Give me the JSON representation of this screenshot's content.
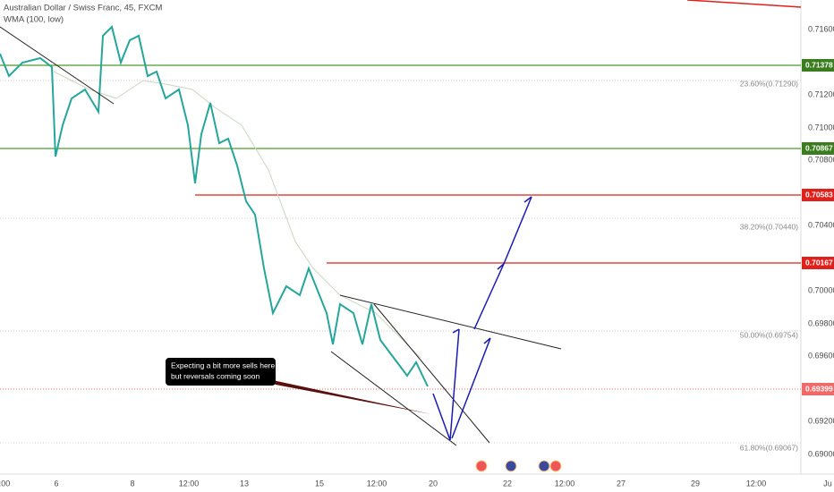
{
  "header": {
    "title": "Australian Dollar / Swiss Franc, 45, FXCM",
    "indicator": "WMA (100, low)"
  },
  "price_axis": {
    "ticks": [
      "0.71600",
      "0.71200",
      "0.71000",
      "0.70800",
      "0.70400",
      "0.70000",
      "0.69800",
      "0.69600",
      "0.69200",
      "0.69000"
    ]
  },
  "levels": [
    {
      "label": "0.71378",
      "color": "#3a7d1e"
    },
    {
      "label": "0.70867",
      "color": "#3a7d1e"
    },
    {
      "label": "0.70583",
      "color": "#e0201b"
    },
    {
      "label": "0.70167",
      "color": "#e0201b"
    },
    {
      "label": "0.69399",
      "color": "#f06a6a"
    }
  ],
  "fib_labels": [
    "23.60%(0.71290)",
    "38.20%(0.70440)",
    "50.00%(0.69754)",
    "61.80%(0.69067)"
  ],
  "annotation": {
    "lines": [
      "Expecting a bit more sells here",
      "but  reversals coming soon"
    ]
  },
  "time_axis": {
    "labels": [
      ":00",
      "6",
      "8",
      "12:00",
      "13",
      "15",
      "12:00",
      "20",
      "22",
      "12:00",
      "27",
      "29",
      "12:00",
      "Ju"
    ]
  }
}
